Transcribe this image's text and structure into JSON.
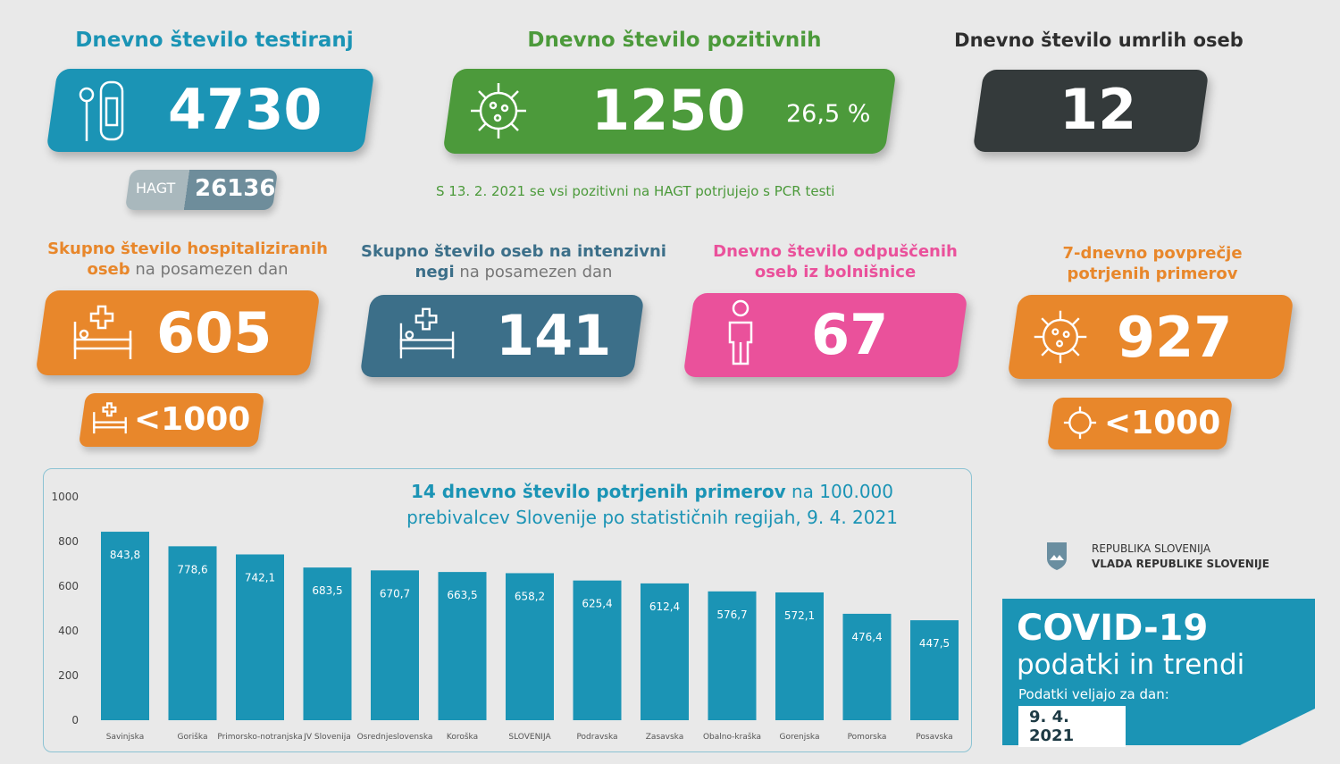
{
  "colors": {
    "teal": "#1b94b5",
    "green": "#4c9a3b",
    "dark": "#343a3b",
    "orange": "#e8872b",
    "slate": "#3c6f89",
    "pink": "#ea519b",
    "hagt_light": "#a9b8bd",
    "hagt_dark": "#6e8d9b"
  },
  "tests": {
    "title": "Dnevno število testiranj",
    "value": "4730",
    "hagt_label": "HAGT",
    "hagt_value": "26136",
    "icon": "test-kit-icon"
  },
  "positive": {
    "title": "Dnevno število pozitivnih",
    "value": "1250",
    "percent": "26,5 %",
    "note": "S 13. 2. 2021 se vsi pozitivni na HAGT potrjujejo s PCR testi",
    "icon": "virus-icon"
  },
  "deaths": {
    "title": "Dnevno število umrlih oseb",
    "value": "12"
  },
  "hospital": {
    "title_bold1": "Skupno število hospitaliziranih",
    "title_bold2": "oseb",
    "title_light": " na posamezen dan",
    "value": "605",
    "threshold": "<1000",
    "icon": "hospital-bed-icon"
  },
  "icu": {
    "title_bold1": "Skupno število oseb na intenzivni",
    "title_bold2": "negi",
    "title_light": " na posamezen dan",
    "value": "141",
    "icon": "hospital-bed-icon"
  },
  "discharged": {
    "title1": "Dnevno število odpuščenih",
    "title2": "oseb iz bolnišnice",
    "value": "67",
    "icon": "person-icon"
  },
  "avg7": {
    "title1": "7-dnevno povprečje",
    "title2": "potrjenih primerov",
    "value": "927",
    "threshold": "<1000",
    "icon": "virus-icon"
  },
  "branding": {
    "line1": "REPUBLIKA SLOVENIJA",
    "line2": "VLADA REPUBLIKE SLOVENIJE",
    "banner_title": "COVID-19",
    "banner_sub": "podatki in trendi",
    "valid_label": "Podatki veljajo za dan:",
    "date": "9. 4. 2021"
  },
  "chart_data": {
    "type": "bar",
    "title_bold": "14 dnevno število potrjenih primerov",
    "title_rest1": " na 100.000",
    "title_line2": "prebivalcev Slovenije po statističnih regijah, 9. 4. 2021",
    "categories": [
      "Savinjska",
      "Goriška",
      "Primorsko-notranjska",
      "JV Slovenija",
      "Osrednjeslovenska",
      "Koroška",
      "SLOVENIJA",
      "Podravska",
      "Zasavska",
      "Obalno-kraška",
      "Gorenjska",
      "Pomorska",
      "Posavska"
    ],
    "values": [
      843.8,
      778.6,
      742.1,
      683.5,
      670.7,
      663.5,
      658.2,
      625.4,
      612.4,
      576.7,
      572.1,
      476.4,
      447.5
    ],
    "labels": [
      "843,8",
      "778,6",
      "742,1",
      "683,5",
      "670,7",
      "663,5",
      "658,2",
      "625,4",
      "612,4",
      "576,7",
      "572,1",
      "476,4",
      "447,5"
    ],
    "yticks": [
      0,
      200,
      400,
      600,
      800,
      1000
    ],
    "ylim": [
      0,
      1000
    ],
    "grid": false,
    "color": "#1b94b5"
  }
}
